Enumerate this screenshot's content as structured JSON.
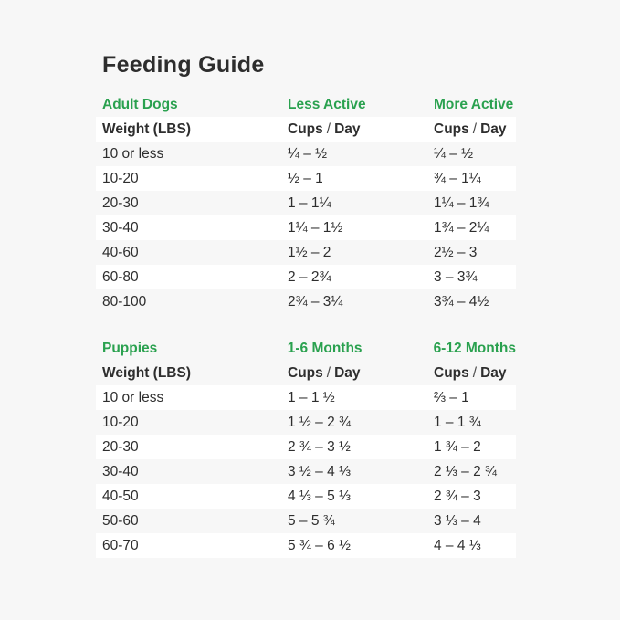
{
  "page": {
    "title": "Feeding Guide",
    "colors": {
      "background": "#f7f7f7",
      "row_stripe_white": "#ffffff",
      "accent_green": "#2aa14f",
      "text": "#2e2e2e"
    }
  },
  "chart_data": [
    {
      "type": "table",
      "title": "Feeding Guide",
      "section": "Adult Dogs",
      "col2_header": "Less Active",
      "col3_header": "More Active",
      "weight_header": "Weight (LBS)",
      "cups_word": "Cups",
      "slash": "/",
      "day_word": "Day",
      "rows": [
        {
          "weight": "10 or less",
          "range1": "¼ – ½",
          "range2": "¼ – ½"
        },
        {
          "weight": "10-20",
          "range1": "½ – 1",
          "range2": "¾ – 1¼"
        },
        {
          "weight": "20-30",
          "range1": "1 – 1¼",
          "range2": "1¼ – 1¾"
        },
        {
          "weight": "30-40",
          "range1": "1¼ – 1½",
          "range2": "1¾ – 2¼"
        },
        {
          "weight": "40-60",
          "range1": "1½ – 2",
          "range2": "2½ – 3"
        },
        {
          "weight": "60-80",
          "range1": "2 – 2¾",
          "range2": "3 – 3¾"
        },
        {
          "weight": "80-100",
          "range1": "2¾ – 3¼",
          "range2": "3¾ – 4½"
        }
      ]
    },
    {
      "type": "table",
      "title": "Feeding Guide",
      "section": "Puppies",
      "col2_header": "1-6 Months",
      "col3_header": "6-12 Months",
      "weight_header": "Weight (LBS)",
      "cups_word": "Cups",
      "slash": "/",
      "day_word": "Day",
      "rows": [
        {
          "weight": "10 or less",
          "range1": "1 – 1 ½",
          "range2": "⅔ – 1"
        },
        {
          "weight": "10-20",
          "range1": "1 ½ – 2 ¾",
          "range2": "1 – 1 ¾"
        },
        {
          "weight": "20-30",
          "range1": "2 ¾ – 3 ½",
          "range2": "1 ¾ – 2"
        },
        {
          "weight": "30-40",
          "range1": "3 ½ – 4 ⅓",
          "range2": "2 ⅓ – 2 ¾"
        },
        {
          "weight": "40-50",
          "range1": "4 ⅓ – 5 ⅓",
          "range2": "2 ¾ – 3"
        },
        {
          "weight": "50-60",
          "range1": "5 – 5 ¾",
          "range2": "3 ⅓ – 4"
        },
        {
          "weight": "60-70",
          "range1": "5 ¾ – 6 ½",
          "range2": "4 – 4 ⅓"
        }
      ]
    }
  ]
}
